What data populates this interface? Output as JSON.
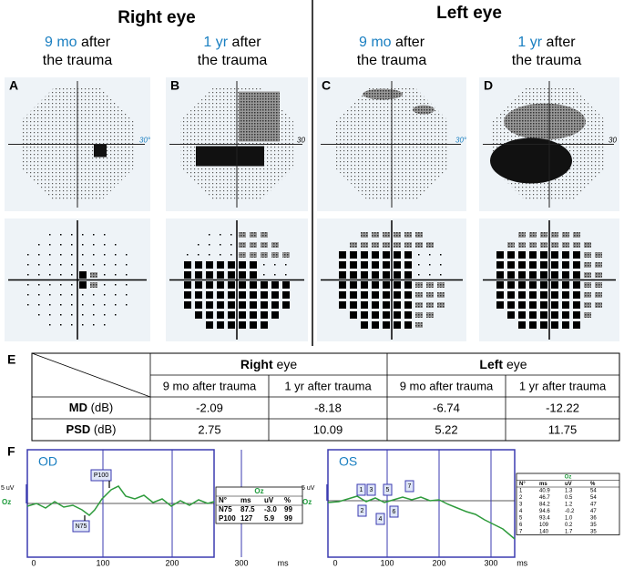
{
  "header": {
    "right_eye": "Right eye",
    "left_eye": "Left eye"
  },
  "columns": [
    {
      "highlight": "9 mo",
      "rest": "after",
      "line2": "the trauma"
    },
    {
      "highlight": "1 yr",
      "rest": "after",
      "line2": "the trauma"
    },
    {
      "highlight": "9 mo",
      "rest": "after",
      "line2": "the trauma"
    },
    {
      "highlight": "1 yr",
      "rest": "after",
      "line2": "the trauma"
    }
  ],
  "panels": {
    "labels": [
      "A",
      "B",
      "C",
      "D"
    ],
    "axis_labels": [
      "30°",
      "30",
      "30°",
      "30"
    ]
  },
  "table": {
    "label": "E",
    "groups": [
      {
        "bold": "Right",
        "text": "eye"
      },
      {
        "bold": "Left",
        "text": "eye"
      }
    ],
    "subheaders": [
      "9 mo after trauma",
      "1 yr after trauma",
      "9 mo after trauma",
      "1 yr after trauma"
    ],
    "rows": [
      {
        "name": "MD",
        "unit": "(dB)",
        "values": [
          -2.09,
          -8.18,
          -6.74,
          -12.22
        ]
      },
      {
        "name": "PSD",
        "unit": "(dB)",
        "values": [
          2.75,
          10.09,
          5.22,
          11.75
        ]
      }
    ]
  },
  "erp": {
    "label": "F",
    "plots": [
      {
        "eye": "OD",
        "scale": "5 uV",
        "channel": "Oz",
        "xticks": [
          0,
          100,
          200,
          300
        ],
        "unit": "ms",
        "peaks": [
          "P100",
          "N75"
        ],
        "table": {
          "title": "Oz",
          "columns": [
            "N°",
            "ms",
            "uV",
            "%"
          ],
          "rows": [
            [
              "N75",
              "87.5",
              "-3.0",
              "99"
            ],
            [
              "P100",
              "127",
              "5.9",
              "99"
            ]
          ]
        }
      },
      {
        "eye": "OS",
        "scale": "5 uV",
        "channel": "Oz",
        "xticks": [
          0,
          100,
          200,
          300
        ],
        "unit": "ms",
        "peaks": [
          "1",
          "2",
          "3",
          "4",
          "5",
          "6",
          "7"
        ],
        "table": {
          "title": "Oz",
          "columns": [
            "N°",
            "ms",
            "uV",
            "%"
          ],
          "rows": [
            [
              "1",
              "40.9",
              "1.3",
              "54"
            ],
            [
              "2",
              "46.7",
              "0.5",
              "54"
            ],
            [
              "3",
              "84.2",
              "1.2",
              "47"
            ],
            [
              "4",
              "94.6",
              "-0.2",
              "47"
            ],
            [
              "5",
              "93.4",
              "1.0",
              "36"
            ],
            [
              "6",
              "109",
              "0.2",
              "35"
            ],
            [
              "7",
              "140",
              "1.7",
              "35"
            ]
          ]
        }
      }
    ]
  }
}
